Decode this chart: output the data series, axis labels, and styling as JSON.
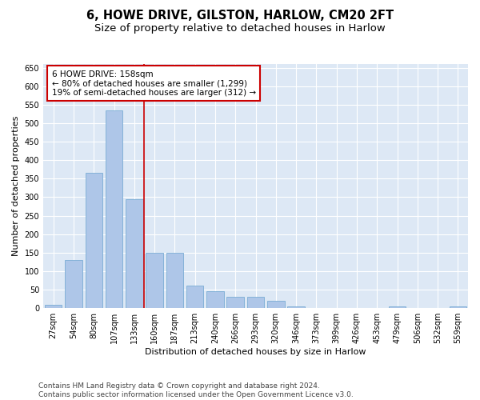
{
  "title": "6, HOWE DRIVE, GILSTON, HARLOW, CM20 2FT",
  "subtitle": "Size of property relative to detached houses in Harlow",
  "xlabel": "Distribution of detached houses by size in Harlow",
  "ylabel": "Number of detached properties",
  "categories": [
    "27sqm",
    "54sqm",
    "80sqm",
    "107sqm",
    "133sqm",
    "160sqm",
    "187sqm",
    "213sqm",
    "240sqm",
    "266sqm",
    "293sqm",
    "320sqm",
    "346sqm",
    "373sqm",
    "399sqm",
    "426sqm",
    "453sqm",
    "479sqm",
    "506sqm",
    "532sqm",
    "559sqm"
  ],
  "values": [
    10,
    130,
    365,
    535,
    295,
    150,
    150,
    60,
    45,
    30,
    30,
    20,
    5,
    0,
    0,
    0,
    0,
    5,
    0,
    0,
    5
  ],
  "bar_color": "#aec6e8",
  "bar_edge_color": "#7aadd4",
  "vline_x_index": 5,
  "vline_color": "#cc0000",
  "annotation_text": "6 HOWE DRIVE: 158sqm\n← 80% of detached houses are smaller (1,299)\n19% of semi-detached houses are larger (312) →",
  "annotation_box_color": "#ffffff",
  "annotation_box_edge_color": "#cc0000",
  "ylim": [
    0,
    660
  ],
  "yticks": [
    0,
    50,
    100,
    150,
    200,
    250,
    300,
    350,
    400,
    450,
    500,
    550,
    600,
    650
  ],
  "background_color": "#dde8f5",
  "footer_text": "Contains HM Land Registry data © Crown copyright and database right 2024.\nContains public sector information licensed under the Open Government Licence v3.0.",
  "title_fontsize": 10.5,
  "subtitle_fontsize": 9.5,
  "xlabel_fontsize": 8,
  "ylabel_fontsize": 8,
  "annotation_fontsize": 7.5,
  "tick_fontsize": 7,
  "footer_fontsize": 6.5
}
